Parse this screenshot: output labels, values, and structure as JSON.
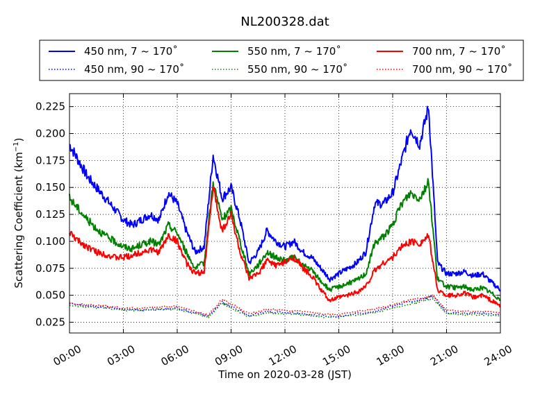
{
  "chart_data": {
    "type": "line",
    "title": "NL200328.dat",
    "xlabel": "Time on 2020-03-28 (JST)",
    "ylabel_main": "Scattering Coefficient (km",
    "ylabel_sup": "−1",
    "ylabel_end": ")",
    "xlim": [
      "00:00",
      "24:00"
    ],
    "ylim": [
      0.015,
      0.237
    ],
    "grid": true,
    "legend_position": "top",
    "x_ticks": [
      "00:00",
      "03:00",
      "06:00",
      "09:00",
      "12:00",
      "15:00",
      "18:00",
      "21:00",
      "24:00"
    ],
    "y_ticks": [
      "0.025",
      "0.050",
      "0.075",
      "0.100",
      "0.125",
      "0.150",
      "0.175",
      "0.200",
      "0.225"
    ],
    "series": [
      {
        "name": "450 nm, 7 ~ 170˚",
        "color": "#0000ff",
        "style": "solid",
        "x": [
          "00:00",
          "00:30",
          "01:00",
          "01:30",
          "02:00",
          "02:30",
          "03:00",
          "03:30",
          "04:00",
          "04:30",
          "05:00",
          "05:30",
          "06:00",
          "06:30",
          "07:00",
          "07:30",
          "08:00",
          "08:30",
          "09:00",
          "09:30",
          "10:00",
          "10:30",
          "11:00",
          "11:30",
          "12:00",
          "12:30",
          "13:00",
          "13:30",
          "14:00",
          "14:30",
          "15:00",
          "15:30",
          "16:00",
          "16:30",
          "17:00",
          "17:30",
          "18:00",
          "18:30",
          "19:00",
          "19:30",
          "20:00",
          "20:30",
          "21:00",
          "21:30",
          "22:00",
          "22:30",
          "23:00",
          "23:30",
          "24:00"
        ],
        "y": [
          0.19,
          0.175,
          0.16,
          0.15,
          0.14,
          0.13,
          0.12,
          0.115,
          0.12,
          0.125,
          0.12,
          0.145,
          0.135,
          0.11,
          0.09,
          0.095,
          0.18,
          0.14,
          0.15,
          0.12,
          0.08,
          0.09,
          0.11,
          0.1,
          0.095,
          0.1,
          0.09,
          0.085,
          0.075,
          0.065,
          0.07,
          0.075,
          0.08,
          0.09,
          0.135,
          0.135,
          0.145,
          0.175,
          0.205,
          0.19,
          0.225,
          0.08,
          0.07,
          0.07,
          0.072,
          0.068,
          0.07,
          0.062,
          0.055
        ]
      },
      {
        "name": "450 nm, 90 ~ 170˚",
        "color": "#0000ff",
        "style": "dotted",
        "x": [
          "00:00",
          "01:00",
          "02:00",
          "03:00",
          "04:00",
          "05:00",
          "06:00",
          "07:00",
          "07:45",
          "08:30",
          "09:00",
          "10:00",
          "11:00",
          "12:00",
          "13:00",
          "14:00",
          "15:00",
          "16:00",
          "17:00",
          "18:00",
          "19:00",
          "19:45",
          "20:15",
          "21:00",
          "22:00",
          "23:00",
          "24:00"
        ],
        "y": [
          0.042,
          0.04,
          0.039,
          0.037,
          0.036,
          0.037,
          0.038,
          0.034,
          0.031,
          0.044,
          0.04,
          0.031,
          0.035,
          0.034,
          0.033,
          0.031,
          0.03,
          0.033,
          0.035,
          0.04,
          0.044,
          0.047,
          0.049,
          0.034,
          0.033,
          0.033,
          0.032
        ]
      },
      {
        "name": "550 nm, 7 ~ 170˚",
        "color": "#008000",
        "style": "solid",
        "x": [
          "00:00",
          "00:30",
          "01:00",
          "01:30",
          "02:00",
          "02:30",
          "03:00",
          "03:30",
          "04:00",
          "04:30",
          "05:00",
          "05:30",
          "06:00",
          "06:30",
          "07:00",
          "07:30",
          "08:00",
          "08:30",
          "09:00",
          "09:30",
          "10:00",
          "10:30",
          "11:00",
          "11:30",
          "12:00",
          "12:30",
          "13:00",
          "13:30",
          "14:00",
          "14:30",
          "15:00",
          "15:30",
          "16:00",
          "16:30",
          "17:00",
          "17:30",
          "18:00",
          "18:30",
          "19:00",
          "19:30",
          "20:00",
          "20:30",
          "21:00",
          "21:30",
          "22:00",
          "22:30",
          "23:00",
          "23:30",
          "24:00"
        ],
        "y": [
          0.14,
          0.13,
          0.12,
          0.112,
          0.105,
          0.1,
          0.095,
          0.093,
          0.097,
          0.1,
          0.097,
          0.115,
          0.108,
          0.09,
          0.075,
          0.08,
          0.155,
          0.12,
          0.13,
          0.1,
          0.07,
          0.078,
          0.09,
          0.085,
          0.082,
          0.085,
          0.078,
          0.073,
          0.063,
          0.055,
          0.058,
          0.061,
          0.064,
          0.07,
          0.098,
          0.105,
          0.115,
          0.135,
          0.145,
          0.14,
          0.155,
          0.065,
          0.058,
          0.057,
          0.058,
          0.055,
          0.057,
          0.052,
          0.046
        ]
      },
      {
        "name": "550 nm, 90 ~ 170˚",
        "color": "#008000",
        "style": "dotted",
        "x": [
          "00:00",
          "01:00",
          "02:00",
          "03:00",
          "04:00",
          "05:00",
          "06:00",
          "07:00",
          "07:45",
          "08:30",
          "09:00",
          "10:00",
          "11:00",
          "12:00",
          "13:00",
          "14:00",
          "15:00",
          "16:00",
          "17:00",
          "18:00",
          "19:00",
          "19:45",
          "20:15",
          "21:00",
          "22:00",
          "23:00",
          "24:00"
        ],
        "y": [
          0.041,
          0.039,
          0.038,
          0.036,
          0.036,
          0.037,
          0.037,
          0.033,
          0.03,
          0.043,
          0.038,
          0.03,
          0.034,
          0.033,
          0.032,
          0.03,
          0.03,
          0.032,
          0.034,
          0.038,
          0.042,
          0.045,
          0.047,
          0.033,
          0.032,
          0.032,
          0.031
        ]
      },
      {
        "name": "700 nm, 7 ~ 170˚",
        "color": "#ff0000",
        "style": "solid",
        "x": [
          "00:00",
          "00:30",
          "01:00",
          "01:30",
          "02:00",
          "02:30",
          "03:00",
          "03:30",
          "04:00",
          "04:30",
          "05:00",
          "05:30",
          "06:00",
          "06:30",
          "07:00",
          "07:30",
          "08:00",
          "08:30",
          "09:00",
          "09:30",
          "10:00",
          "10:30",
          "11:00",
          "11:30",
          "12:00",
          "12:30",
          "13:00",
          "13:30",
          "14:00",
          "14:30",
          "15:00",
          "15:30",
          "16:00",
          "16:30",
          "17:00",
          "17:30",
          "18:00",
          "18:30",
          "19:00",
          "19:30",
          "20:00",
          "20:30",
          "21:00",
          "21:30",
          "22:00",
          "22:30",
          "23:00",
          "23:30",
          "24:00"
        ],
        "y": [
          0.108,
          0.1,
          0.095,
          0.09,
          0.088,
          0.085,
          0.085,
          0.087,
          0.09,
          0.092,
          0.09,
          0.105,
          0.1,
          0.08,
          0.07,
          0.072,
          0.15,
          0.11,
          0.125,
          0.09,
          0.065,
          0.07,
          0.082,
          0.078,
          0.08,
          0.085,
          0.075,
          0.068,
          0.055,
          0.045,
          0.048,
          0.05,
          0.053,
          0.058,
          0.073,
          0.08,
          0.085,
          0.095,
          0.1,
          0.098,
          0.105,
          0.055,
          0.05,
          0.05,
          0.052,
          0.048,
          0.05,
          0.045,
          0.04
        ]
      },
      {
        "name": "700 nm, 90 ~ 170˚",
        "color": "#ff0000",
        "style": "dotted",
        "x": [
          "00:00",
          "01:00",
          "02:00",
          "03:00",
          "04:00",
          "05:00",
          "06:00",
          "07:00",
          "07:45",
          "08:30",
          "09:00",
          "10:00",
          "11:00",
          "12:00",
          "13:00",
          "14:00",
          "15:00",
          "16:00",
          "17:00",
          "18:00",
          "19:00",
          "19:45",
          "20:15",
          "21:00",
          "22:00",
          "23:00",
          "24:00"
        ],
        "y": [
          0.043,
          0.041,
          0.04,
          0.038,
          0.038,
          0.039,
          0.04,
          0.035,
          0.032,
          0.046,
          0.042,
          0.033,
          0.037,
          0.036,
          0.035,
          0.033,
          0.032,
          0.035,
          0.037,
          0.041,
          0.046,
          0.048,
          0.05,
          0.036,
          0.035,
          0.035,
          0.034
        ]
      }
    ]
  }
}
